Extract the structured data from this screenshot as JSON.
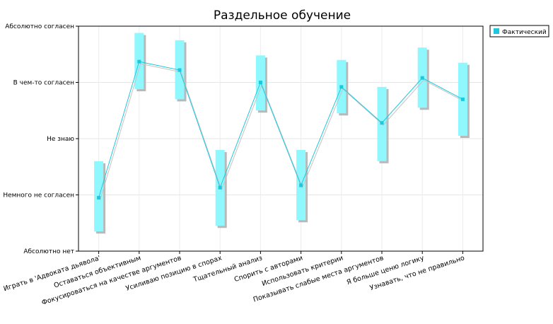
{
  "chart_data": {
    "type": "line",
    "title": "Раздельное обучение",
    "categories": [
      "Играть в 'Адвоката дьявола'",
      "Оставаться объективным",
      "Фокусироваться на качестве аргументов",
      "Усиливаю позицию в спорах",
      "Тщательный анализ",
      "Спорить с авторами",
      "Использовать критерии",
      "Показывать слабые места аргументов",
      "Я больше ценю логику",
      "Узнавать, что не правильно"
    ],
    "y_tick_labels": [
      "Абсолютно нет",
      "Немного не согласен",
      "Не знаю",
      "В чем-то согласен",
      "Абсолютно согласен"
    ],
    "ylim": [
      1,
      5
    ],
    "series": [
      {
        "name": "Фактический",
        "color": "#1ec8dc",
        "values": [
          1.95,
          4.37,
          4.22,
          2.13,
          4.0,
          2.17,
          3.92,
          3.28,
          4.08,
          3.7
        ],
        "range_low": [
          1.35,
          3.88,
          3.7,
          1.45,
          3.5,
          1.55,
          3.45,
          2.6,
          3.55,
          3.05
        ],
        "range_high": [
          2.6,
          4.88,
          4.75,
          2.8,
          4.48,
          2.8,
          4.4,
          3.92,
          4.62,
          4.35
        ]
      }
    ],
    "range_color": "#8ff8ff",
    "grid": true,
    "legend_position": "top-right"
  }
}
